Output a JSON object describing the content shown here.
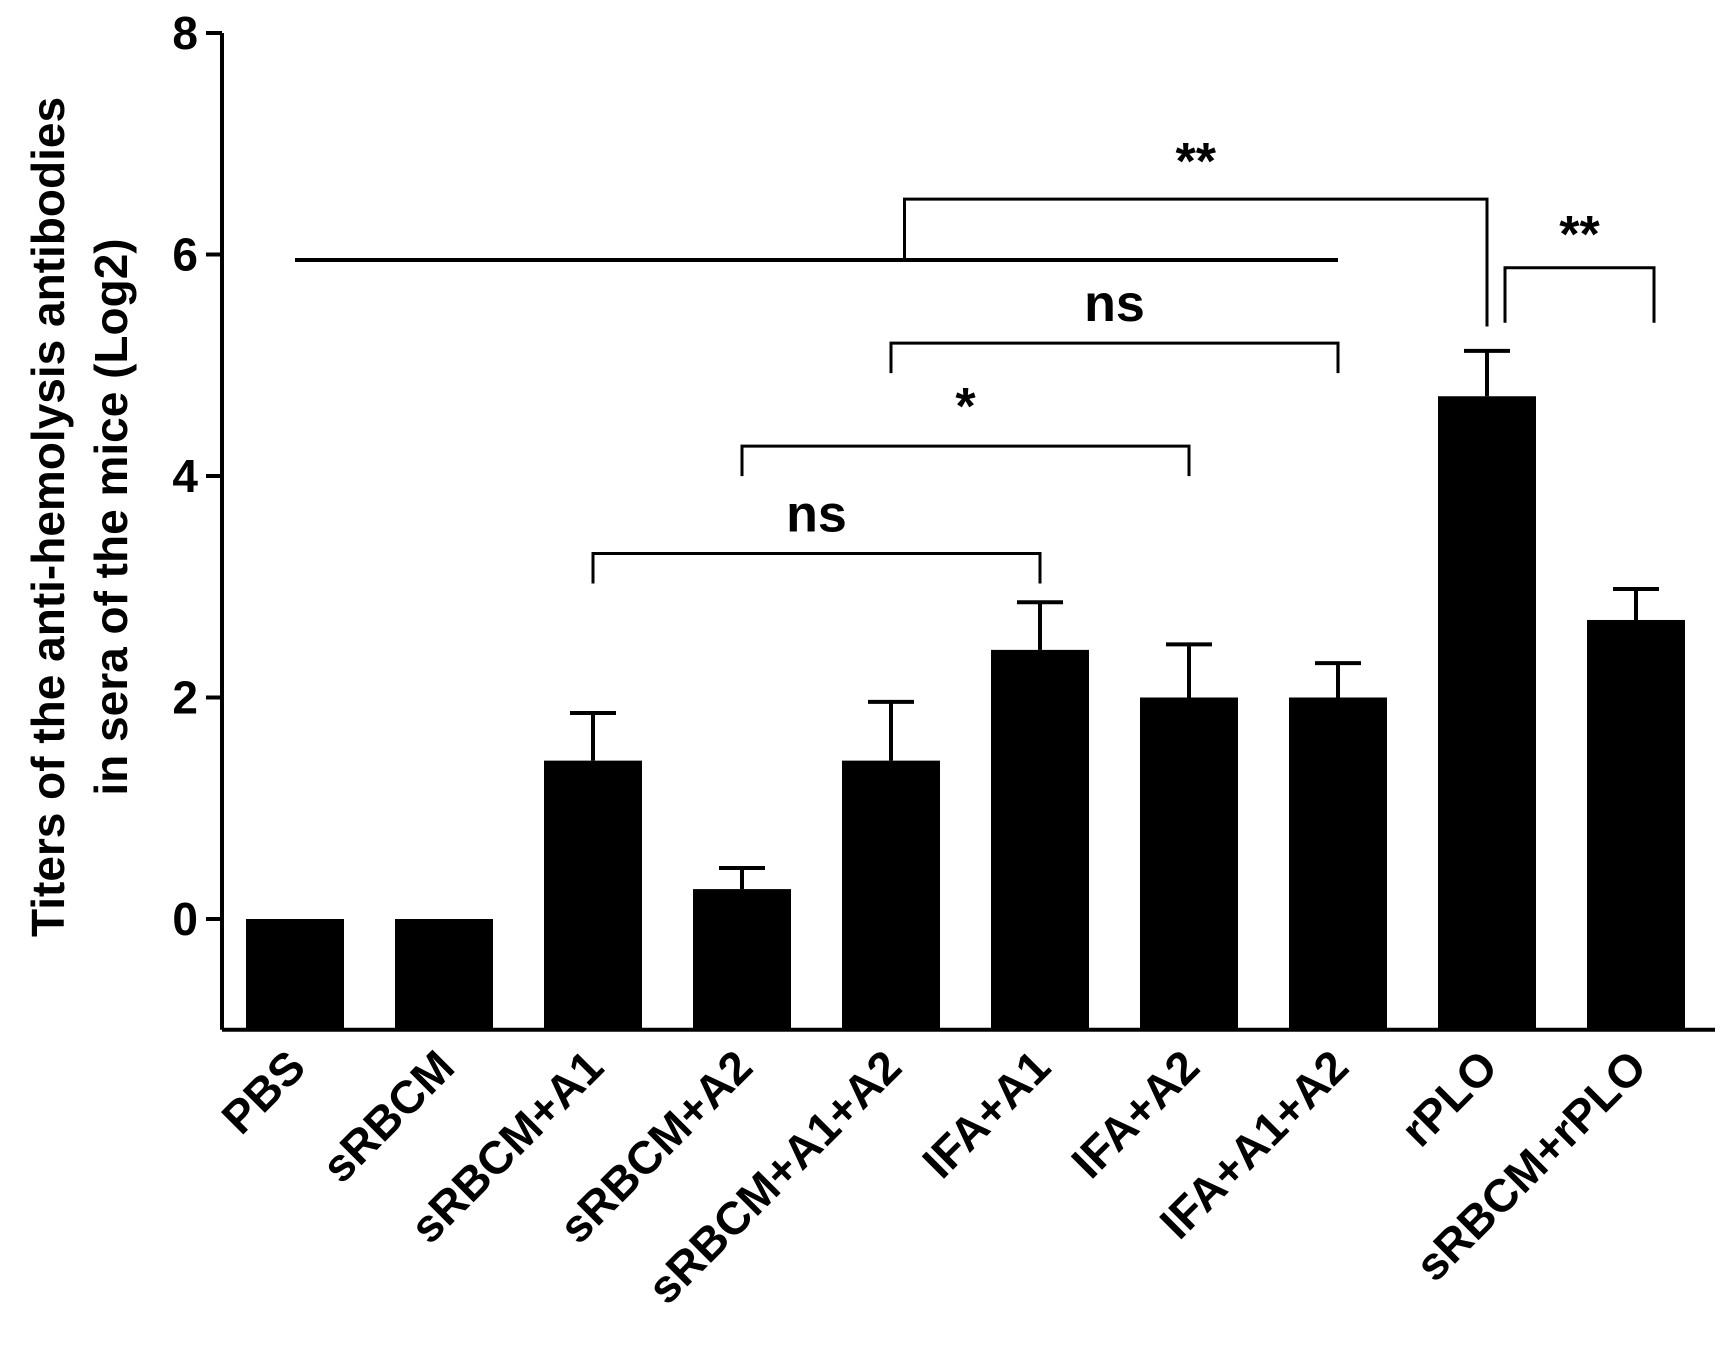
{
  "chart_data": {
    "type": "bar",
    "title": "",
    "xlabel": "",
    "ylabel_lines": [
      "Titers of the anti-hemolysis antibodies",
      "in sera of the mice (Log2)"
    ],
    "ylim": [
      -1,
      8
    ],
    "yticks": [
      0,
      2,
      4,
      6,
      8
    ],
    "categories": [
      "PBS",
      "sRBCM",
      "sRBCM+A1",
      "sRBCM+A2",
      "sRBCM+A1+A2",
      "IFA+A1",
      "IFA+A2",
      "IFA+A1+A2",
      "rPLO",
      "sRBCM+rPLO"
    ],
    "values": [
      0,
      0,
      1.43,
      0.27,
      1.43,
      2.43,
      2.0,
      2.0,
      4.72,
      2.7
    ],
    "errors": [
      0,
      0,
      0.43,
      0.19,
      0.53,
      0.43,
      0.48,
      0.31,
      0.41,
      0.28
    ],
    "comparisons": [
      {
        "label": "ns",
        "from": "sRBCM+A1",
        "to": "IFA+A1",
        "y": 3.3
      },
      {
        "label": "*",
        "from": "sRBCM+A2",
        "to": "IFA+A2",
        "y": 4.27
      },
      {
        "label": "ns",
        "from": "sRBCM+A1+A2",
        "to": "IFA+A1+A2",
        "y": 5.2
      },
      {
        "label": "**",
        "from": "PBS..IFA+A1+A2 (group)",
        "to": "rPLO",
        "y": 6.5
      },
      {
        "label": "**",
        "from": "rPLO",
        "to": "sRBCM+rPLO",
        "y": 5.88
      }
    ]
  }
}
